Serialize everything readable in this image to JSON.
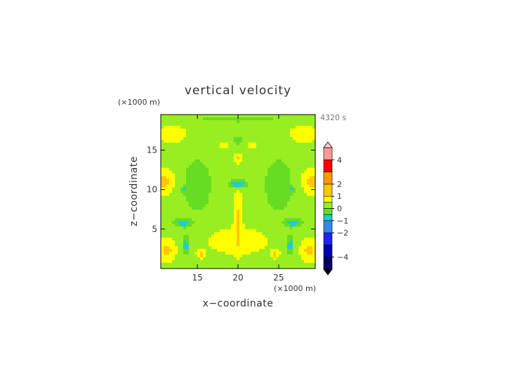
{
  "chart_data": {
    "type": "heatmap",
    "title": "vertical velocity",
    "xlabel": "x−coordinate",
    "ylabel": "z−coordinate",
    "x_unit": "(×1000 m)",
    "y_unit": "(×1000 m)",
    "time_label": "4320 s",
    "xlim": [
      10.5,
      29.5
    ],
    "ylim": [
      0,
      19.5
    ],
    "x_ticks": [
      15,
      20,
      25
    ],
    "y_ticks": [
      5,
      10,
      15
    ],
    "colorbar": {
      "levels": [
        -5,
        -4,
        -3,
        -2,
        -1,
        0,
        1,
        2,
        3,
        4,
        5
      ],
      "tick_labels": [
        "4",
        "2",
        "1",
        "0",
        "−1",
        "−2",
        "−4"
      ],
      "colors": {
        "neg_4_5": "#000066",
        "neg_3_4": "#0000bb",
        "neg_2_3": "#2222ff",
        "neg_1_2": "#3388ee",
        "neg_05_1": "#22cccc",
        "neg_0_05": "#66dd22",
        "pos_0_05": "#99ee22",
        "pos_05_1": "#ffff00",
        "pos_1_2": "#ffc800",
        "pos_2_3": "#ff9900",
        "pos_3_4": "#ff0000",
        "pos_4_5": "#ff9999"
      }
    },
    "field": {
      "description_values": "vertical velocity in m/s, background ~0.3",
      "blobs": [
        {
          "x": 11.0,
          "z": 11.0,
          "rx": 1.2,
          "rz": 1.5,
          "w": 0.9
        },
        {
          "x": 29.0,
          "z": 11.0,
          "rx": 1.2,
          "rz": 1.5,
          "w": 0.9
        },
        {
          "x": 11.2,
          "z": 2.3,
          "rx": 1.0,
          "rz": 1.3,
          "w": 0.9
        },
        {
          "x": 28.8,
          "z": 2.3,
          "rx": 1.0,
          "rz": 1.3,
          "w": 0.9
        },
        {
          "x": 20.0,
          "z": 6.5,
          "rx": 0.45,
          "rz": 4.0,
          "w": 0.75
        },
        {
          "x": 20.0,
          "z": 14.0,
          "rx": 0.6,
          "rz": 0.6,
          "w": 0.9
        },
        {
          "x": 18.4,
          "z": 15.7,
          "rx": 0.8,
          "rz": 0.5,
          "w": 0.8
        },
        {
          "x": 21.6,
          "z": 15.7,
          "rx": 0.8,
          "rz": 0.5,
          "w": 0.8
        },
        {
          "x": 15.4,
          "z": 1.8,
          "rx": 0.45,
          "rz": 0.45,
          "w": 0.9
        },
        {
          "x": 24.6,
          "z": 1.8,
          "rx": 0.45,
          "rz": 0.45,
          "w": 0.9
        },
        {
          "x": 20.0,
          "z": 10.7,
          "rx": 1.0,
          "rz": 0.5,
          "w": -1.5
        },
        {
          "x": 13.2,
          "z": 5.8,
          "rx": 1.0,
          "rz": 0.5,
          "w": -1.2
        },
        {
          "x": 26.8,
          "z": 5.8,
          "rx": 1.0,
          "rz": 0.5,
          "w": -1.2
        },
        {
          "x": 13.6,
          "z": 3.0,
          "rx": 0.35,
          "rz": 1.3,
          "w": -1.2
        },
        {
          "x": 26.4,
          "z": 3.0,
          "rx": 0.35,
          "rz": 1.3,
          "w": -1.2
        },
        {
          "x": 13.3,
          "z": 10.0,
          "rx": 0.3,
          "rz": 0.3,
          "w": -1.0
        },
        {
          "x": 26.7,
          "z": 10.0,
          "rx": 0.3,
          "rz": 0.3,
          "w": -1.0
        },
        {
          "x": 15.0,
          "z": 10.5,
          "rx": 2.3,
          "rz": 4.5,
          "w": -0.5
        },
        {
          "x": 25.0,
          "z": 10.5,
          "rx": 2.3,
          "rz": 4.5,
          "w": -0.5
        },
        {
          "x": 20.0,
          "z": 16.0,
          "rx": 2.2,
          "rz": 1.8,
          "w": -0.35
        },
        {
          "x": 20.0,
          "z": 19.0,
          "rx": 10.0,
          "rz": 0.7,
          "w": -0.35
        },
        {
          "x": 20.0,
          "z": 3.5,
          "rx": 5.0,
          "rz": 2.0,
          "w": 0.4
        },
        {
          "x": 12.0,
          "z": 17.0,
          "rx": 2.0,
          "rz": 1.2,
          "w": 0.5
        },
        {
          "x": 28.0,
          "z": 17.0,
          "rx": 2.0,
          "rz": 1.2,
          "w": 0.5
        }
      ],
      "background": 0.3
    }
  }
}
